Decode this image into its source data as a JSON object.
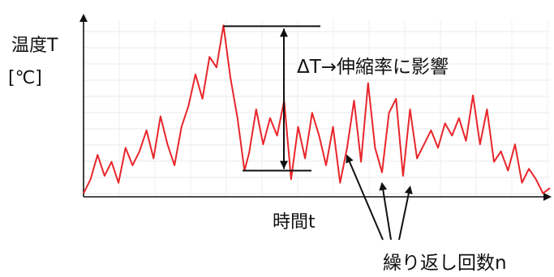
{
  "chart_data": {
    "type": "line",
    "title": "",
    "ylabel_line1": "温度T",
    "ylabel_line2": "[℃]",
    "xlabel": "時間t",
    "grid": true,
    "line_color": "#e8262b",
    "ylim": [
      0,
      100
    ],
    "xlim": [
      0,
      100
    ],
    "series": [
      {
        "x": [
          0,
          1.5,
          3,
          4.5,
          6,
          7.5,
          9,
          10.5,
          12,
          13.5,
          15,
          16.5,
          18,
          19.5,
          21,
          22.5,
          24,
          25.5,
          27,
          28.5,
          30,
          31.5,
          33,
          34.5,
          35.5,
          37,
          38.5,
          40,
          41.5,
          43,
          44.5,
          46,
          47.5,
          49,
          50.5,
          52,
          53.5,
          55,
          56.5,
          58,
          59.5,
          61,
          62.5,
          64,
          65.5,
          67,
          68.5,
          70,
          71.5,
          73,
          74.5,
          76,
          77.5,
          79,
          80.5,
          82,
          83.5,
          85,
          86.5,
          88,
          89.5,
          91,
          92.5,
          94,
          95.5,
          97,
          98.5,
          100
        ],
        "y": [
          2,
          10,
          24,
          12,
          20,
          8,
          28,
          18,
          26,
          38,
          22,
          46,
          30,
          18,
          40,
          52,
          70,
          56,
          80,
          74,
          98,
          68,
          45,
          15,
          25,
          50,
          30,
          45,
          35,
          55,
          10,
          40,
          22,
          48,
          35,
          18,
          40,
          8,
          28,
          55,
          20,
          65,
          28,
          14,
          48,
          56,
          12,
          50,
          22,
          30,
          38,
          28,
          42,
          35,
          45,
          32,
          58,
          30,
          50,
          20,
          26,
          15,
          30,
          8,
          16,
          10,
          2,
          5
        ]
      }
    ],
    "annotations": {
      "delta": "ΔT→伸縮率に影響",
      "repeat": "繰り返し回数n"
    }
  }
}
